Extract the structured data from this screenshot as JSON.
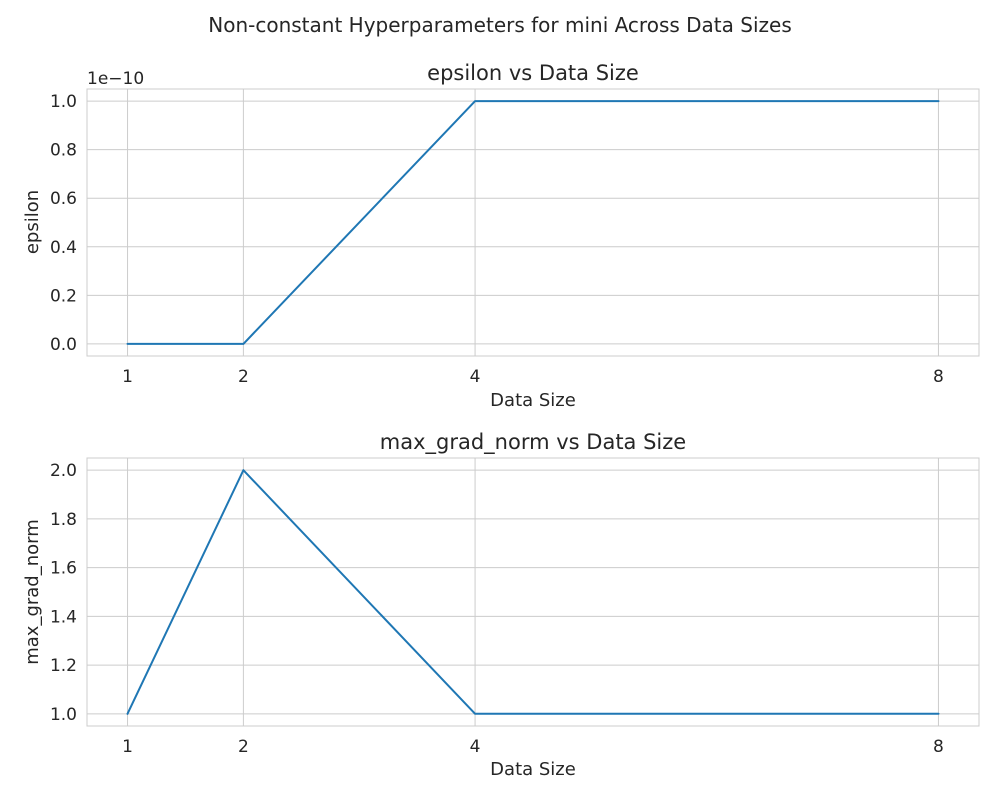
{
  "suptitle": "Non-constant Hyperparameters for mini Across Data Sizes",
  "chart_data": [
    {
      "type": "line",
      "title": "epsilon vs Data Size",
      "xlabel": "Data Size",
      "ylabel": "epsilon",
      "offset_label": "1e−10",
      "x": [
        1,
        2,
        4,
        8
      ],
      "series": [
        {
          "values": [
            0.0,
            0.0,
            1.0,
            1.0
          ]
        }
      ],
      "y_scale_note": "values in units of 1e-10",
      "xlim": [
        0.65,
        8.35
      ],
      "ylim": [
        -0.05,
        1.05
      ],
      "xticks": [
        1,
        2,
        4,
        8
      ],
      "yticks": [
        0.0,
        0.2,
        0.4,
        0.6,
        0.8,
        1.0
      ],
      "ytick_labels": [
        "0.0",
        "0.2",
        "0.4",
        "0.6",
        "0.8",
        "1.0"
      ],
      "line_color": "#1f77b4",
      "grid": true
    },
    {
      "type": "line",
      "title": "max_grad_norm vs Data Size",
      "xlabel": "Data Size",
      "ylabel": "max_grad_norm",
      "x": [
        1,
        2,
        4,
        8
      ],
      "series": [
        {
          "values": [
            1.0,
            2.0,
            1.0,
            1.0
          ]
        }
      ],
      "xlim": [
        0.65,
        8.35
      ],
      "ylim": [
        0.95,
        2.05
      ],
      "xticks": [
        1,
        2,
        4,
        8
      ],
      "yticks": [
        1.0,
        1.2,
        1.4,
        1.6,
        1.8,
        2.0
      ],
      "ytick_labels": [
        "1.0",
        "1.2",
        "1.4",
        "1.6",
        "1.8",
        "2.0"
      ],
      "line_color": "#1f77b4",
      "grid": true
    }
  ]
}
